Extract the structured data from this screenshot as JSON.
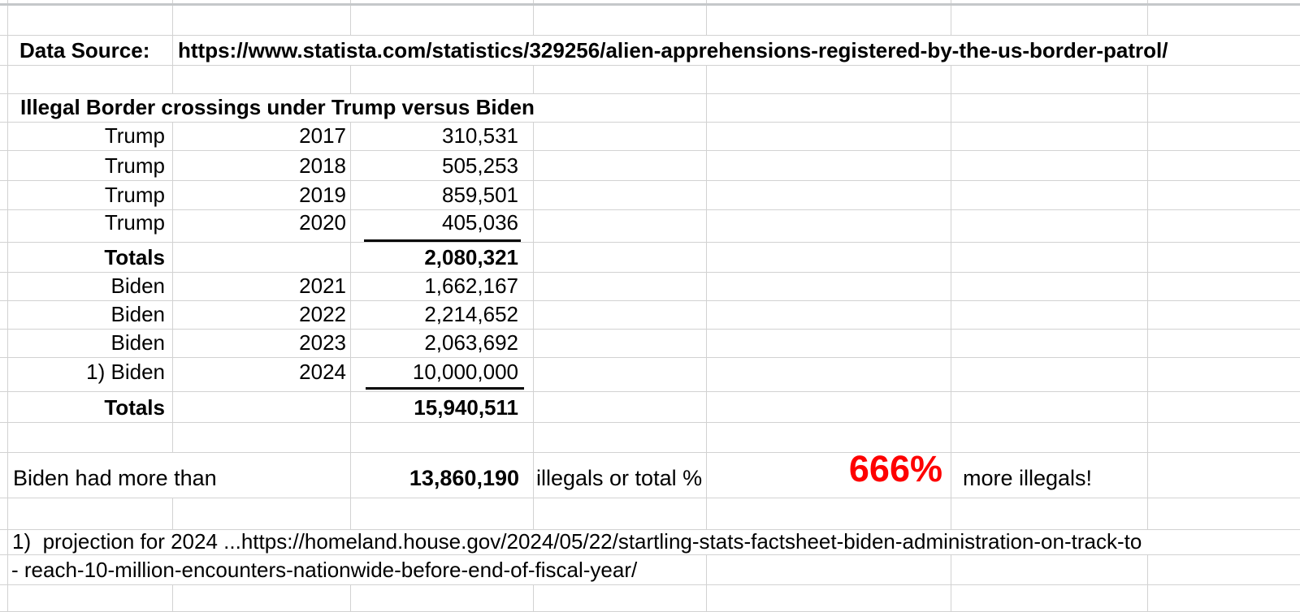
{
  "sheet": {
    "data_source_label": "Data Source:",
    "data_source_url": "https://www.statista.com/statistics/329256/alien-apprehensions-registered-by-the-us-border-patrol/",
    "title": "Illegal Border crossings under Trump versus Biden",
    "table": {
      "rows": [
        {
          "label": "Trump",
          "year": "2017",
          "value": "310,531",
          "bold": false,
          "underline": false
        },
        {
          "label": "Trump",
          "year": "2018",
          "value": "505,253",
          "bold": false,
          "underline": false
        },
        {
          "label": "Trump",
          "year": "2019",
          "value": "859,501",
          "bold": false,
          "underline": false
        },
        {
          "label": "Trump",
          "year": "2020",
          "value": "405,036",
          "bold": false,
          "underline": true
        },
        {
          "label": "Totals",
          "year": "",
          "value": "2,080,321",
          "bold": true,
          "underline": false
        },
        {
          "label": "Biden",
          "year": "2021",
          "value": "1,662,167",
          "bold": false,
          "underline": false
        },
        {
          "label": "Biden",
          "year": "2022",
          "value": "2,214,652",
          "bold": false,
          "underline": false
        },
        {
          "label": "Biden",
          "year": "2023",
          "value": "2,063,692",
          "bold": false,
          "underline": false
        },
        {
          "label": "1) Biden",
          "year": "2024",
          "value": "10,000,000",
          "bold": false,
          "underline": true
        },
        {
          "label": "Totals",
          "year": "",
          "value": "15,940,511",
          "bold": true,
          "underline": false
        }
      ]
    },
    "summary": {
      "prefix": "Biden had more than",
      "difference": "13,860,190",
      "middle": "illegals or total %",
      "percent": "666%",
      "suffix": "more illegals!",
      "percent_color": "#fe0000"
    },
    "footnote_line1": "1)  projection for 2024 ...https://homeland.house.gov/2024/05/22/startling-stats-factsheet-biden-administration-on-track-to",
    "footnote_line2": "- reach-10-million-encounters-nationwide-before-end-of-fiscal-year/"
  }
}
